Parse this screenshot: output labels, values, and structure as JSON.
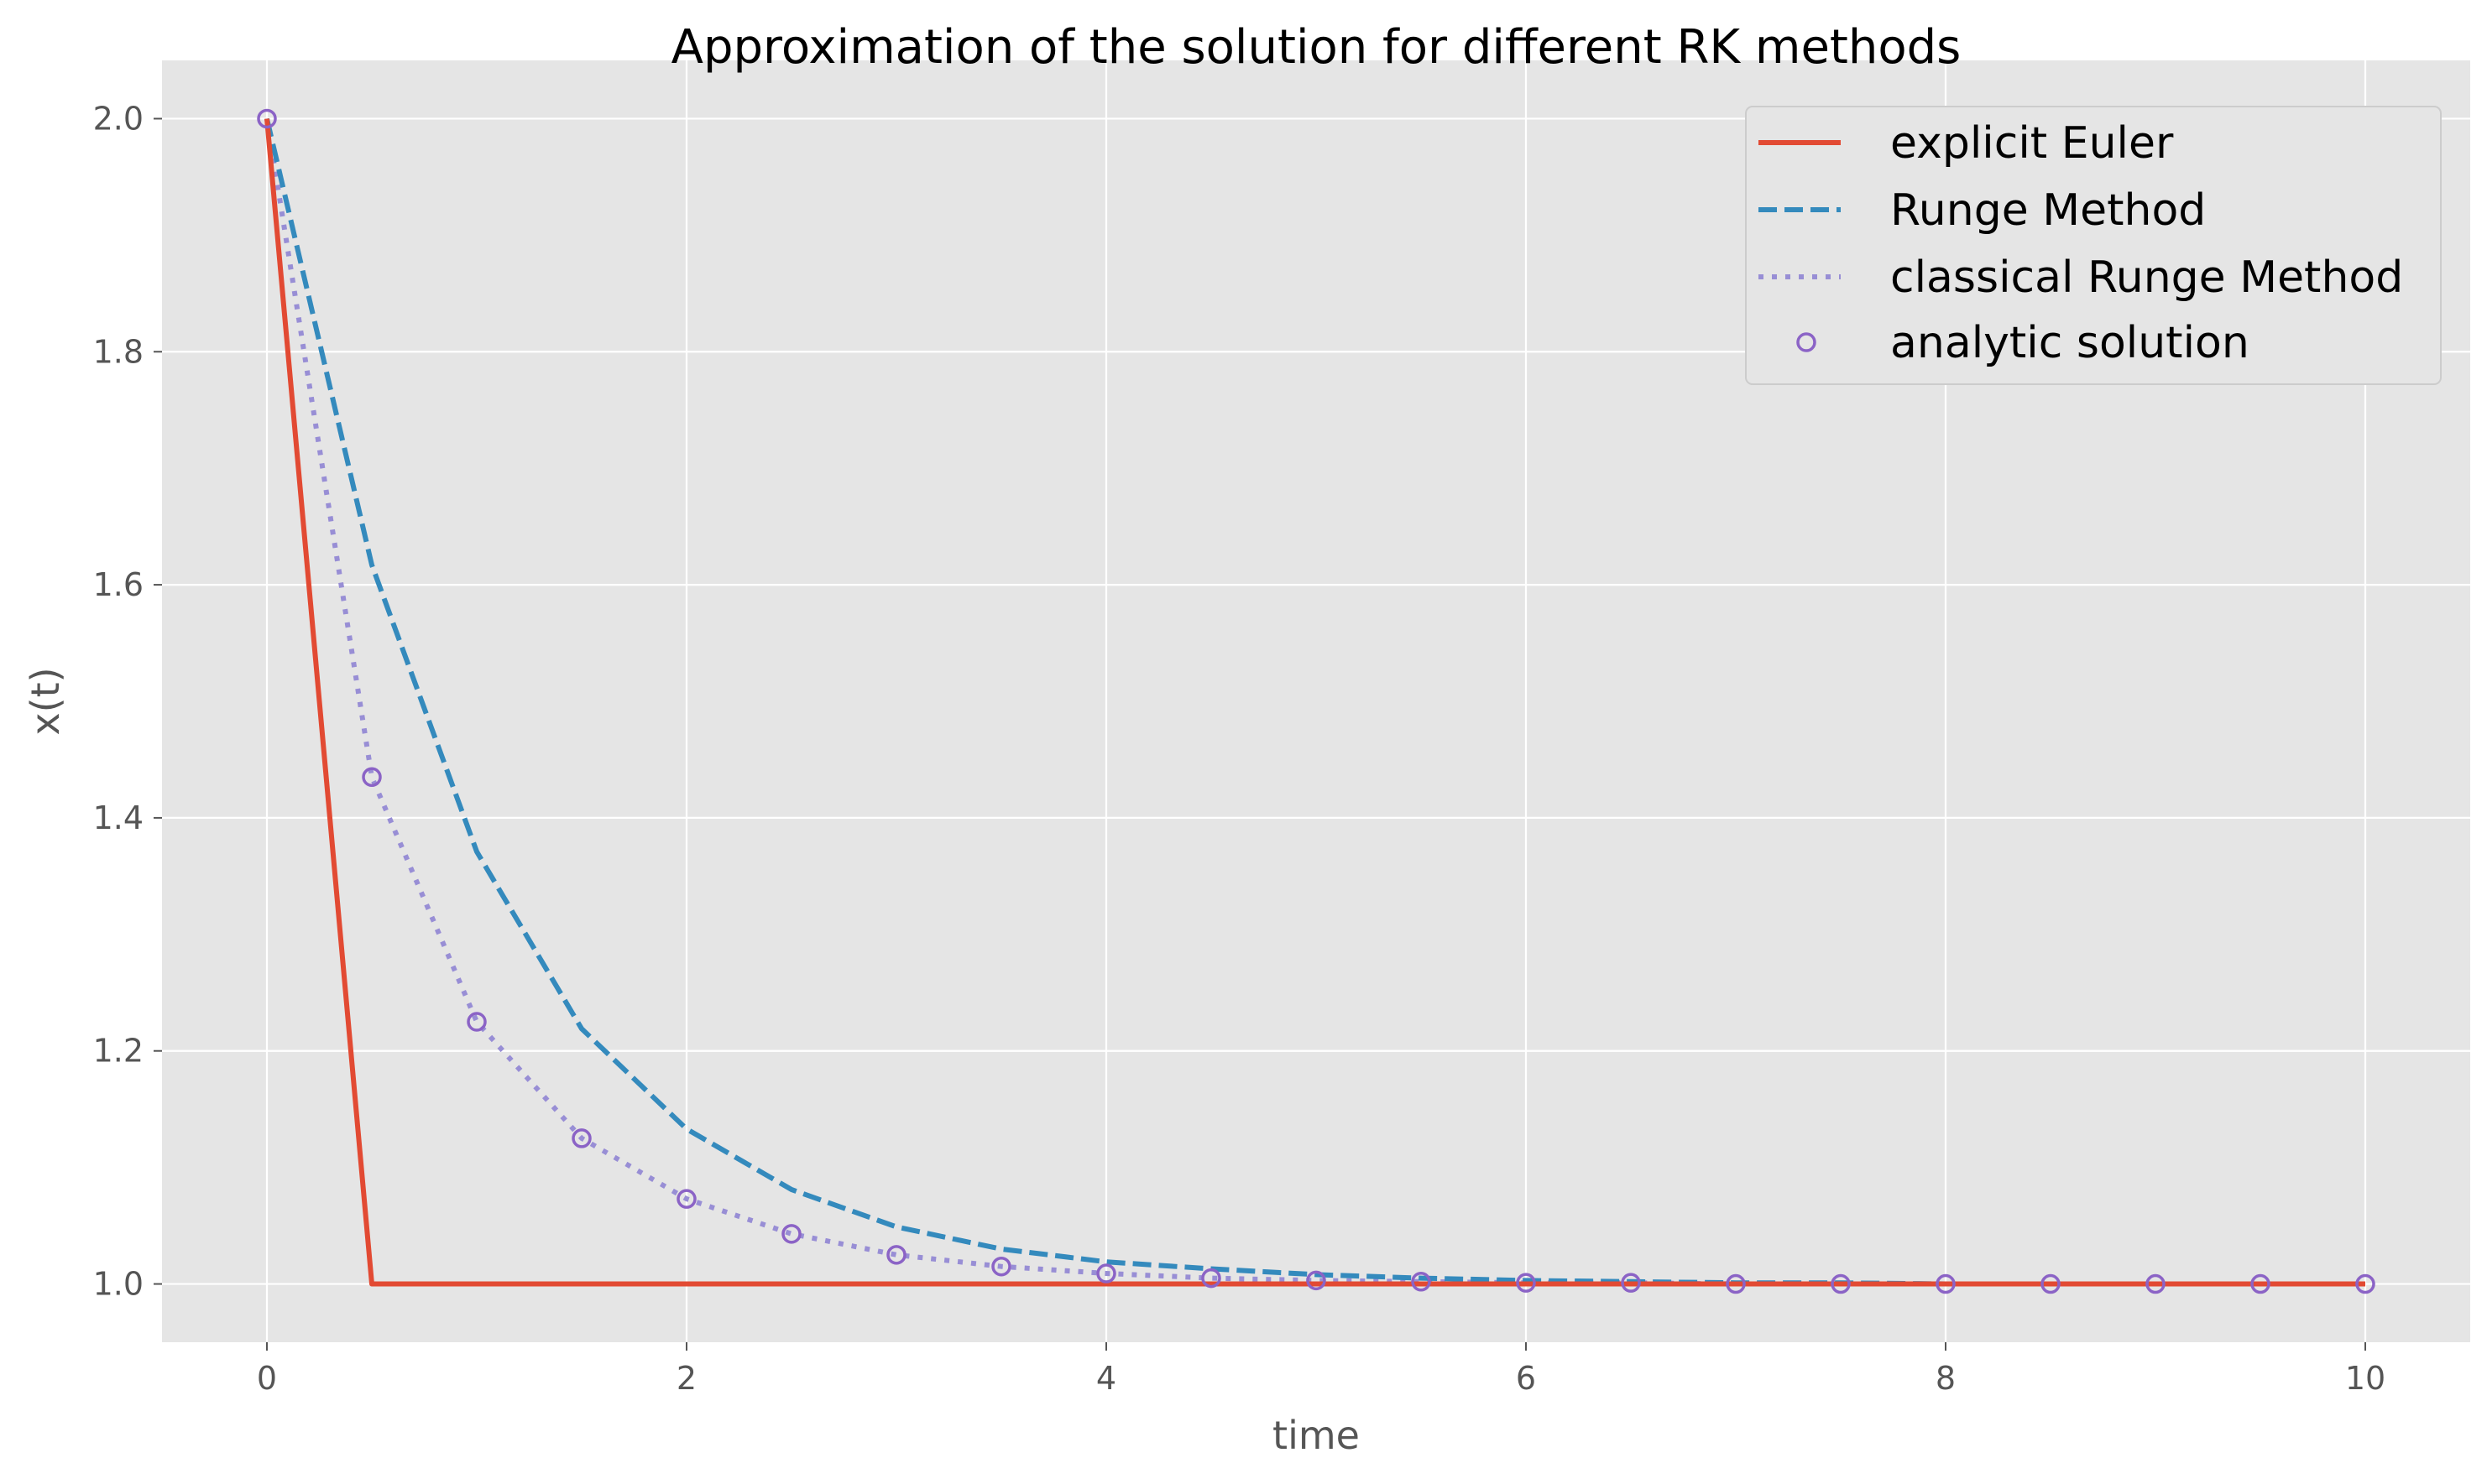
{
  "chart_data": {
    "type": "line",
    "title": "Approximation of the solution for different RK methods",
    "xlabel": "time",
    "ylabel": "x(t)",
    "xlim": [
      -0.5,
      10.5
    ],
    "ylim": [
      0.95,
      2.05
    ],
    "xticks": [
      0,
      2,
      4,
      6,
      8,
      10
    ],
    "yticks": [
      1.0,
      1.2,
      1.4,
      1.6,
      1.8,
      2.0
    ],
    "xtick_labels": [
      "0",
      "2",
      "4",
      "6",
      "8",
      "10"
    ],
    "ytick_labels": [
      "1.0",
      "1.2",
      "1.4",
      "1.6",
      "1.8",
      "2.0"
    ],
    "grid": true,
    "legend_position": "top-right",
    "x": [
      0,
      0.5,
      1,
      1.5,
      2,
      2.5,
      3,
      3.5,
      4,
      4.5,
      5,
      5.5,
      6,
      6.5,
      7,
      7.5,
      8,
      8.5,
      9,
      9.5,
      10
    ],
    "series": [
      {
        "name": "explicit Euler",
        "style": "solid",
        "color": "#E24A33",
        "values": [
          2.0,
          1.0,
          1.0,
          1.0,
          1.0,
          1.0,
          1.0,
          1.0,
          1.0,
          1.0,
          1.0,
          1.0,
          1.0,
          1.0,
          1.0,
          1.0,
          1.0,
          1.0,
          1.0,
          1.0,
          1.0
        ]
      },
      {
        "name": "Runge Method",
        "style": "dashed",
        "color": "#348ABD",
        "values": [
          2.0,
          1.617,
          1.371,
          1.219,
          1.133,
          1.081,
          1.049,
          1.03,
          1.019,
          1.013,
          1.008,
          1.005,
          1.003,
          1.002,
          1.001,
          1.001,
          1.0,
          1.0,
          1.0,
          1.0,
          1.0
        ]
      },
      {
        "name": "classical Runge Method",
        "style": "dotted",
        "color": "#988ED5",
        "values": [
          2.0,
          1.435,
          1.225,
          1.125,
          1.073,
          1.043,
          1.025,
          1.015,
          1.009,
          1.005,
          1.003,
          1.002,
          1.001,
          1.001,
          1.0,
          1.0,
          1.0,
          1.0,
          1.0,
          1.0,
          1.0
        ]
      },
      {
        "name": "analytic solution",
        "style": "markers",
        "color": "#8B63C6",
        "values": [
          2.0,
          1.435,
          1.225,
          1.125,
          1.073,
          1.043,
          1.025,
          1.015,
          1.009,
          1.005,
          1.003,
          1.002,
          1.001,
          1.001,
          1.0,
          1.0,
          1.0,
          1.0,
          1.0,
          1.0,
          1.0
        ]
      }
    ]
  },
  "colors": {
    "plot_background": "#E5E5E5",
    "grid": "#FFFFFF",
    "legend_background": "#E5E5E5",
    "legend_border": "#CCCCCC"
  }
}
